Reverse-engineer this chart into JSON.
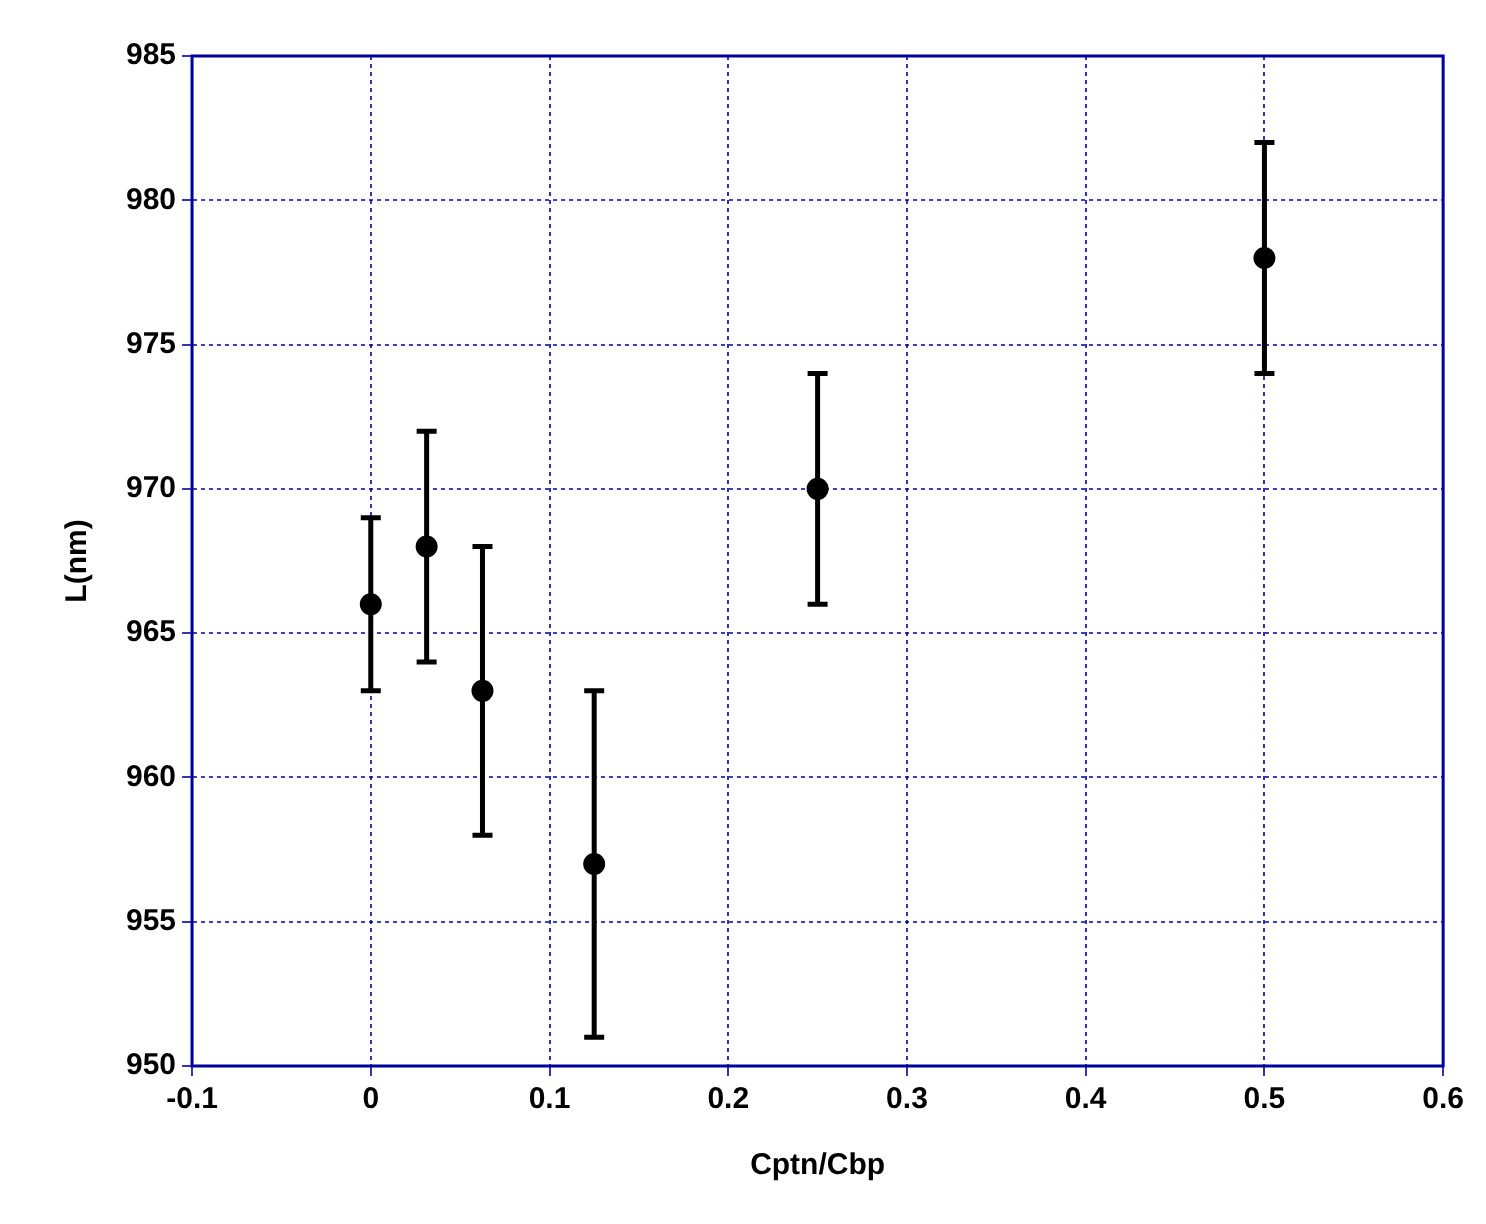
{
  "chart_data": {
    "type": "scatter",
    "xlabel": "Cptn/Cbp",
    "ylabel": "L(nm)",
    "x": [
      0,
      0.03125,
      0.0625,
      0.125,
      0.25,
      0.5
    ],
    "series": [
      {
        "color": "#000000",
        "values": [
          966,
          968,
          963,
          957,
          970,
          978
        ],
        "errors": [
          3,
          4,
          5,
          6,
          4,
          4
        ]
      }
    ],
    "xlim": [
      -0.1,
      0.6
    ],
    "xticks": [
      -0.1,
      0,
      0.1,
      0.2,
      0.3,
      0.4,
      0.5,
      0.6
    ],
    "ylim": [
      950,
      985
    ],
    "yticks": [
      950,
      955,
      960,
      965,
      970,
      975,
      980,
      985
    ],
    "grid": true,
    "legend": false,
    "marker": "circle"
  }
}
